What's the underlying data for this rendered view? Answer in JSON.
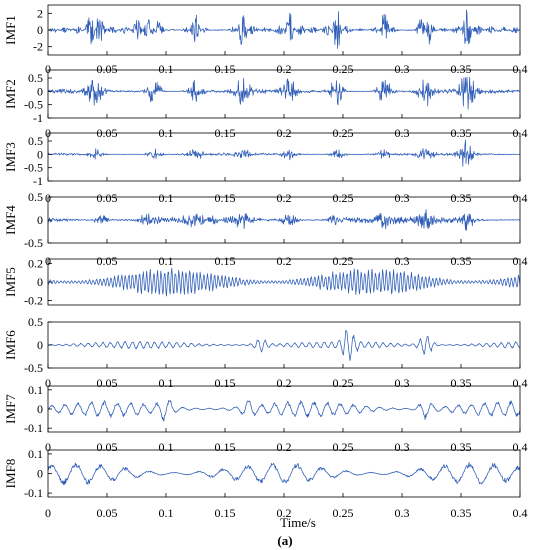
{
  "chart_data": [
    {
      "type": "line",
      "ylabel": "IMF1",
      "yticks": [
        "2",
        "0",
        "-2"
      ],
      "ytick_values": [
        2,
        0,
        -2
      ],
      "ylim": [
        -3,
        3
      ],
      "xlim": [
        0,
        0.4
      ],
      "xticks": [
        "0",
        "0.05",
        "0.1",
        "0.15",
        "0.2",
        "0.25",
        "0.3",
        "0.35",
        "0.4"
      ],
      "line_color": "#2f5db8",
      "bursts": [
        [
          0.04,
          2.3
        ],
        [
          0.078,
          1.2
        ],
        [
          0.09,
          1.5
        ],
        [
          0.125,
          1.9
        ],
        [
          0.165,
          2.0
        ],
        [
          0.205,
          1.8
        ],
        [
          0.245,
          2.2
        ],
        [
          0.285,
          2.1
        ],
        [
          0.32,
          2.6
        ],
        [
          0.355,
          2.1
        ]
      ],
      "noise": 0.45
    },
    {
      "type": "line",
      "ylabel": "IMF2",
      "yticks": [
        "0.5",
        "0",
        "-0.5",
        "-1"
      ],
      "ytick_values": [
        0.5,
        0,
        -0.5,
        -1
      ],
      "ylim": [
        -1,
        0.8
      ],
      "xlim": [
        0,
        0.4
      ],
      "xticks": [
        "0",
        "0.05",
        "0.1",
        "0.15",
        "0.2",
        "0.25",
        "0.3",
        "0.35",
        "0.4"
      ],
      "line_color": "#2f5db8",
      "bursts": [
        [
          0.04,
          0.65
        ],
        [
          0.09,
          0.55
        ],
        [
          0.125,
          0.55
        ],
        [
          0.165,
          0.65
        ],
        [
          0.205,
          0.6
        ],
        [
          0.245,
          0.6
        ],
        [
          0.285,
          0.6
        ],
        [
          0.32,
          0.7
        ],
        [
          0.355,
          0.8
        ]
      ],
      "noise": 0.1
    },
    {
      "type": "line",
      "ylabel": "IMF3",
      "yticks": [
        "0.5",
        "0",
        "-0.5",
        "-1"
      ],
      "ytick_values": [
        0.5,
        0,
        -0.5,
        -1
      ],
      "ylim": [
        -1,
        0.8
      ],
      "xlim": [
        0,
        0.4
      ],
      "xticks": [
        "0",
        "0.05",
        "0.1",
        "0.15",
        "0.2",
        "0.25",
        "0.3",
        "0.35",
        "0.4"
      ],
      "line_color": "#2f5db8",
      "bursts": [
        [
          0.04,
          0.2
        ],
        [
          0.09,
          0.22
        ],
        [
          0.125,
          0.2
        ],
        [
          0.165,
          0.2
        ],
        [
          0.205,
          0.2
        ],
        [
          0.245,
          0.22
        ],
        [
          0.285,
          0.2
        ],
        [
          0.32,
          0.25
        ],
        [
          0.355,
          0.6
        ]
      ],
      "noise": 0.06
    },
    {
      "type": "line",
      "ylabel": "IMF4",
      "yticks": [
        "0.5",
        "0",
        "-0.5"
      ],
      "ytick_values": [
        0.5,
        0,
        -0.5
      ],
      "ylim": [
        -0.5,
        0.5
      ],
      "xlim": [
        0,
        0.4
      ],
      "xticks": [
        "0",
        "0.05",
        "0.1",
        "0.15",
        "0.2",
        "0.25",
        "0.3",
        "0.35",
        "0.4"
      ],
      "line_color": "#2f5db8",
      "bursts": [
        [
          0.045,
          0.12
        ],
        [
          0.085,
          0.15
        ],
        [
          0.125,
          0.12
        ],
        [
          0.165,
          0.14
        ],
        [
          0.205,
          0.17
        ],
        [
          0.245,
          0.14
        ],
        [
          0.285,
          0.14
        ],
        [
          0.32,
          0.15
        ],
        [
          0.355,
          0.2
        ]
      ],
      "noise": 0.1
    },
    {
      "type": "line",
      "ylabel": "IMF5",
      "yticks": [
        "0.2",
        "0",
        "-0.2"
      ],
      "ytick_values": [
        0.2,
        0,
        -0.2
      ],
      "ylim": [
        -0.25,
        0.25
      ],
      "xlim": [
        0,
        0.4
      ],
      "xticks": [],
      "line_color": "#2f5db8",
      "bursts": [],
      "noise": 0.16
    },
    {
      "type": "line",
      "ylabel": "IMF6",
      "yticks": [
        "0.5",
        "0",
        "-0.5"
      ],
      "ytick_values": [
        0.5,
        0,
        -0.5
      ],
      "ylim": [
        -0.5,
        0.5
      ],
      "xlim": [
        0,
        0.4
      ],
      "xticks": [
        "0",
        "0.05",
        "0.1",
        "0.15",
        "0.2",
        "0.25",
        "0.3",
        "0.35",
        "0.4"
      ],
      "line_color": "#2f5db8",
      "bursts": [
        [
          0.255,
          0.32
        ],
        [
          0.32,
          0.25
        ],
        [
          0.18,
          0.15
        ]
      ],
      "noise": 0.09
    },
    {
      "type": "line",
      "ylabel": "IMF7",
      "yticks": [
        "0.1",
        "0",
        "-0.1"
      ],
      "ytick_values": [
        0.1,
        0,
        -0.1
      ],
      "ylim": [
        -0.12,
        0.12
      ],
      "xlim": [
        0,
        0.4
      ],
      "xticks": [
        "0",
        "0.05",
        "0.1",
        "0.15",
        "0.2",
        "0.25",
        "0.3",
        "0.35",
        "0.4"
      ],
      "line_color": "#2f5db8",
      "bursts": [
        [
          0.1,
          0.05
        ],
        [
          0.17,
          0.04
        ],
        [
          0.32,
          0.05
        ]
      ],
      "noise": 0.045
    },
    {
      "type": "line",
      "ylabel": "IMF8",
      "yticks": [
        "0.1",
        "0",
        "-0.1"
      ],
      "ytick_values": [
        0.1,
        0,
        -0.1
      ],
      "ylim": [
        -0.12,
        0.12
      ],
      "xlim": [
        0,
        0.4
      ],
      "xticks": [
        "0",
        "0.05",
        "0.1",
        "0.15",
        "0.2",
        "0.25",
        "0.3",
        "0.35",
        "0.4"
      ],
      "line_color": "#2f5db8",
      "bursts": [],
      "noise": 0.06
    }
  ],
  "xlabel": "Time/s",
  "caption": "(a)"
}
